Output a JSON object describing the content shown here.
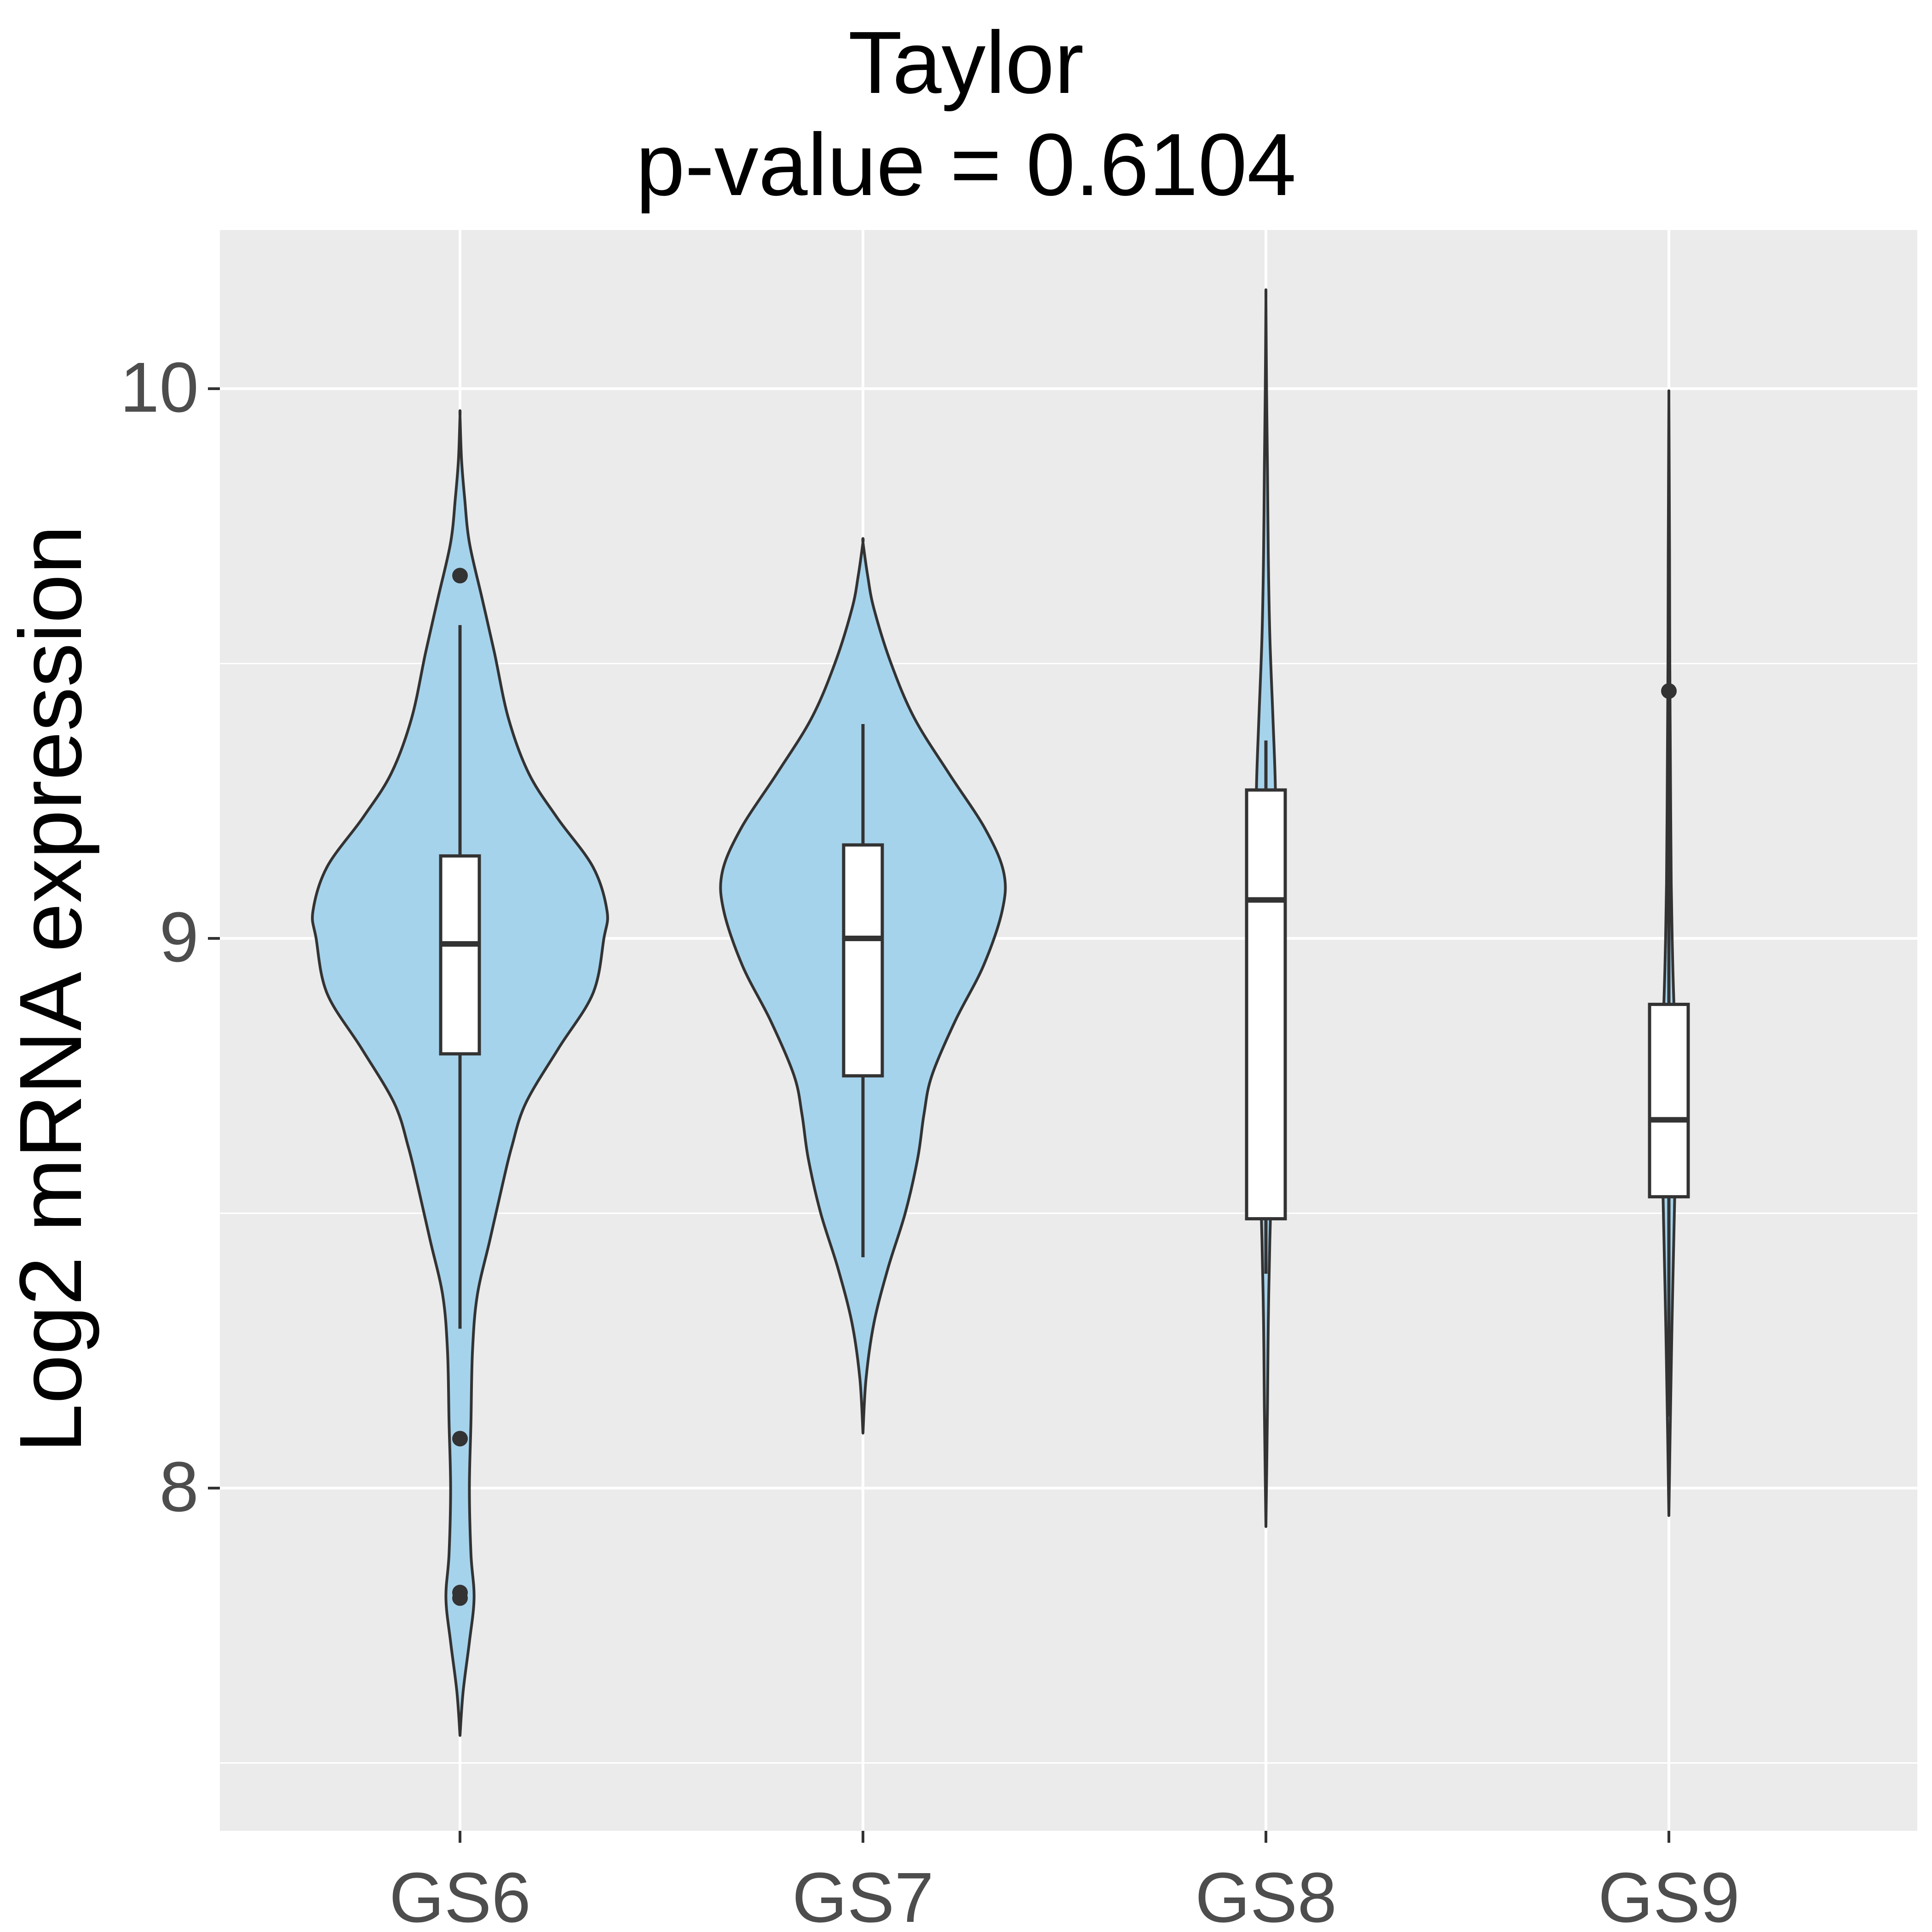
{
  "chart_data": {
    "type": "violin",
    "title": "Taylor",
    "subtitle": "p-value = 0.6104",
    "xlabel": "",
    "ylabel": "Log2 mRNA expression",
    "ylim": [
      7.5,
      10.3
    ],
    "y_ticks": [
      8,
      9,
      10
    ],
    "y_tick_labels": [
      "8",
      "9",
      "10"
    ],
    "grid": true,
    "categories": [
      "GS6",
      "GS7",
      "GS8",
      "GS9"
    ],
    "colors": {
      "panel_background": "#EBEBEB",
      "grid": "#FFFFFF",
      "violin_fill": "#A6D3EC",
      "outline": "#333333",
      "box_fill": "#FFFFFF",
      "tick_label": "#4D4D4D"
    },
    "groups": [
      {
        "name": "GS6",
        "violin_range": [
          7.55,
          9.95
        ],
        "density_profile": [
          [
            7.55,
            0.0
          ],
          [
            7.63,
            0.02
          ],
          [
            7.72,
            0.06
          ],
          [
            7.8,
            0.09
          ],
          [
            7.88,
            0.07
          ],
          [
            8.0,
            0.06
          ],
          [
            8.12,
            0.07
          ],
          [
            8.25,
            0.08
          ],
          [
            8.35,
            0.11
          ],
          [
            8.45,
            0.19
          ],
          [
            8.55,
            0.27
          ],
          [
            8.62,
            0.33
          ],
          [
            8.7,
            0.42
          ],
          [
            8.8,
            0.63
          ],
          [
            8.9,
            0.85
          ],
          [
            9.0,
            0.92
          ],
          [
            9.05,
            0.94
          ],
          [
            9.13,
            0.85
          ],
          [
            9.22,
            0.62
          ],
          [
            9.3,
            0.44
          ],
          [
            9.4,
            0.31
          ],
          [
            9.52,
            0.22
          ],
          [
            9.62,
            0.14
          ],
          [
            9.72,
            0.06
          ],
          [
            9.8,
            0.03
          ],
          [
            9.87,
            0.01
          ],
          [
            9.95,
            0.0
          ]
        ],
        "box": {
          "q1": 8.79,
          "median": 8.99,
          "q3": 9.15,
          "whisker_low": 8.29,
          "whisker_high": 9.57
        },
        "outliers": [
          9.66,
          8.09,
          7.81,
          7.8
        ]
      },
      {
        "name": "GS7",
        "violin_range": [
          8.1,
          9.72
        ],
        "density_profile": [
          [
            8.1,
            0.0
          ],
          [
            8.2,
            0.02
          ],
          [
            8.3,
            0.07
          ],
          [
            8.4,
            0.16
          ],
          [
            8.5,
            0.27
          ],
          [
            8.6,
            0.35
          ],
          [
            8.68,
            0.39
          ],
          [
            8.75,
            0.44
          ],
          [
            8.85,
            0.59
          ],
          [
            8.95,
            0.77
          ],
          [
            9.05,
            0.89
          ],
          [
            9.12,
            0.9
          ],
          [
            9.2,
            0.78
          ],
          [
            9.3,
            0.55
          ],
          [
            9.4,
            0.33
          ],
          [
            9.5,
            0.18
          ],
          [
            9.6,
            0.07
          ],
          [
            9.66,
            0.03
          ],
          [
            9.72,
            0.0
          ]
        ],
        "box": {
          "q1": 8.75,
          "median": 9.0,
          "q3": 9.17,
          "whisker_low": 8.42,
          "whisker_high": 9.39
        },
        "outliers": []
      },
      {
        "name": "GS8",
        "violin_range": [
          7.93,
          10.16
        ],
        "density_profile": [
          [
            7.93,
            0.0
          ],
          [
            8.15,
            0.01
          ],
          [
            8.3,
            0.015
          ],
          [
            8.45,
            0.025
          ],
          [
            8.55,
            0.035
          ],
          [
            8.7,
            0.05
          ],
          [
            8.85,
            0.06
          ],
          [
            9.0,
            0.065
          ],
          [
            9.15,
            0.065
          ],
          [
            9.28,
            0.06
          ],
          [
            9.4,
            0.045
          ],
          [
            9.55,
            0.025
          ],
          [
            9.7,
            0.015
          ],
          [
            9.85,
            0.01
          ],
          [
            10.0,
            0.004
          ],
          [
            10.16,
            0.0
          ]
        ],
        "box": {
          "q1": 8.49,
          "median": 9.07,
          "q3": 9.27,
          "whisker_low": 8.39,
          "whisker_high": 9.36
        },
        "outliers": []
      },
      {
        "name": "GS9",
        "violin_range": [
          7.95,
          9.98
        ],
        "density_profile": [
          [
            7.95,
            0.0
          ],
          [
            8.1,
            0.008
          ],
          [
            8.3,
            0.02
          ],
          [
            8.5,
            0.035
          ],
          [
            8.65,
            0.045
          ],
          [
            8.8,
            0.04
          ],
          [
            8.95,
            0.025
          ],
          [
            9.1,
            0.015
          ],
          [
            9.3,
            0.01
          ],
          [
            9.5,
            0.006
          ],
          [
            9.7,
            0.004
          ],
          [
            9.85,
            0.002
          ],
          [
            9.98,
            0.0
          ]
        ],
        "box": {
          "q1": 8.53,
          "median": 8.67,
          "q3": 8.88,
          "whisker_low": 8.13,
          "whisker_high": 9.45
        },
        "outliers": [
          9.45
        ]
      }
    ]
  }
}
